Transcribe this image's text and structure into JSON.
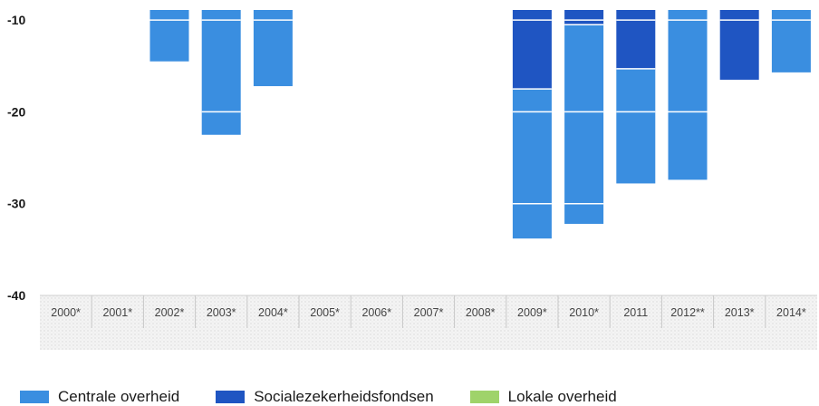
{
  "chart_data": {
    "type": "bar",
    "stacked": true,
    "title": "",
    "xlabel": "",
    "ylabel": "",
    "ylim": [
      -40,
      -9
    ],
    "y_ticks": [
      -10,
      -20,
      -30,
      -40
    ],
    "grid": false,
    "legend_position": "bottom",
    "categories": [
      "2000*",
      "2001*",
      "2002*",
      "2003*",
      "2004*",
      "2005*",
      "2006*",
      "2007*",
      "2008*",
      "2009*",
      "2010*",
      "2011",
      "2012**",
      "2013*",
      "2014*"
    ],
    "bar_bottoms": [
      null,
      null,
      -14.5,
      -22.5,
      -17.2,
      null,
      null,
      null,
      null,
      -33.8,
      -32.2,
      -27.8,
      -27.4,
      -16.5,
      -15.7
    ],
    "series": [
      {
        "name": "Centrale overheid",
        "color": "#3a8ee0"
      },
      {
        "name": "Socialezekerheidsfondsen",
        "color": "#1f55c2"
      },
      {
        "name": "Lokale overheid",
        "color": "#9fd36a"
      }
    ],
    "segments": [
      {
        "category": "2002*",
        "series": "Centrale overheid",
        "from": -10,
        "to": -14.5
      },
      {
        "category": "2003*",
        "series": "Centrale overheid",
        "from": -10,
        "to": -20
      },
      {
        "category": "2003*",
        "series": "Centrale overheid",
        "from": -20,
        "to": -22.5
      },
      {
        "category": "2004*",
        "series": "Centrale overheid",
        "from": -10,
        "to": -17.2
      },
      {
        "category": "2009*",
        "series": "Socialezekerheidsfondsen",
        "from": -10,
        "to": -17.5
      },
      {
        "category": "2009*",
        "series": "Centrale overheid",
        "from": -17.5,
        "to": -20
      },
      {
        "category": "2009*",
        "series": "Centrale overheid",
        "from": -20,
        "to": -30
      },
      {
        "category": "2009*",
        "series": "Centrale overheid",
        "from": -30,
        "to": -33.8
      },
      {
        "category": "2010*",
        "series": "Socialezekerheidsfondsen",
        "from": -10,
        "to": -10.5
      },
      {
        "category": "2010*",
        "series": "Centrale overheid",
        "from": -10.5,
        "to": -20
      },
      {
        "category": "2010*",
        "series": "Centrale overheid",
        "from": -20,
        "to": -30
      },
      {
        "category": "2010*",
        "series": "Centrale overheid",
        "from": -30,
        "to": -32.2
      },
      {
        "category": "2011",
        "series": "Socialezekerheidsfondsen",
        "from": -10,
        "to": -15.3
      },
      {
        "category": "2011",
        "series": "Centrale overheid",
        "from": -15.3,
        "to": -20
      },
      {
        "category": "2011",
        "series": "Centrale overheid",
        "from": -20,
        "to": -27.8
      },
      {
        "category": "2012**",
        "series": "Centrale overheid",
        "from": -10,
        "to": -20
      },
      {
        "category": "2012**",
        "series": "Centrale overheid",
        "from": -20,
        "to": -27.4
      },
      {
        "category": "2013*",
        "series": "Socialezekerheidsfondsen",
        "from": -10,
        "to": -16.5
      },
      {
        "category": "2014*",
        "series": "Centrale overheid",
        "from": -10,
        "to": -15.7
      }
    ]
  }
}
